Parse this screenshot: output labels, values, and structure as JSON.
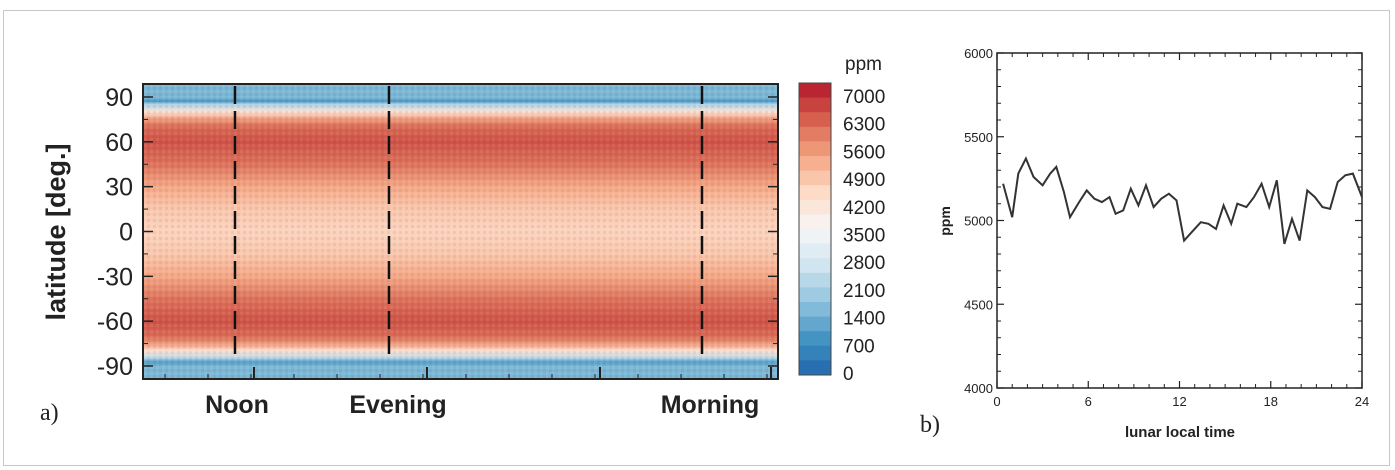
{
  "panel_a": {
    "label": "a)",
    "ylabel": "latitude [deg.]",
    "yticks": [
      "90",
      "60",
      "30",
      "0",
      "-30",
      "-60",
      "-90"
    ],
    "time_labels": [
      "Noon",
      "Evening",
      "Morning"
    ],
    "colorbar": {
      "unit": "ppm",
      "ticks": [
        "7000",
        "6300",
        "5600",
        "4900",
        "4200",
        "3500",
        "2800",
        "2100",
        "1400",
        "700",
        "0"
      ]
    }
  },
  "panel_b": {
    "label": "b)",
    "xlabel": "lunar local time",
    "ylabel": "ppm",
    "xticks": [
      "0",
      "6",
      "12",
      "18",
      "24"
    ],
    "yticks": [
      "6000",
      "5500",
      "5000",
      "4500",
      "4000"
    ]
  },
  "chart_data": [
    {
      "type": "heatmap",
      "panel": "a",
      "ylabel": "latitude [deg.]",
      "ylim": [
        -90,
        90
      ],
      "y_ticks": [
        90,
        60,
        30,
        0,
        -30,
        -60,
        -90
      ],
      "x_annotations": [
        "Noon",
        "Evening",
        "Morning"
      ],
      "colorbar_unit": "ppm",
      "colorbar_range": [
        0,
        7000
      ],
      "colorbar_ticks": [
        7000,
        6300,
        5600,
        4900,
        4200,
        3500,
        2800,
        2100,
        1400,
        700,
        0
      ],
      "colormap": [
        "#2166ac",
        "#4393c3",
        "#92c5de",
        "#d1e5f0",
        "#f7f7f7",
        "#fddbc7",
        "#f4a582",
        "#d6604d",
        "#b2182b"
      ],
      "latitude_profile": {
        "latitude": [
          90,
          87,
          85,
          80,
          75,
          70,
          60,
          45,
          30,
          15,
          0,
          -15,
          -30,
          -45,
          -60,
          -70,
          -75,
          -80,
          -85,
          -87,
          -90
        ],
        "ppm": [
          1500,
          1000,
          2200,
          4200,
          5400,
          6000,
          6300,
          5900,
          5200,
          4700,
          4500,
          4700,
          5200,
          5900,
          6300,
          6000,
          5400,
          4200,
          2200,
          1000,
          1500
        ]
      }
    },
    {
      "type": "line",
      "panel": "b",
      "xlabel": "lunar local time",
      "ylabel": "ppm",
      "xlim": [
        0,
        24
      ],
      "ylim": [
        4000,
        6000
      ],
      "xticks": [
        0,
        6,
        12,
        18,
        24
      ],
      "yticks": [
        4000,
        4500,
        5000,
        5500,
        6000
      ],
      "grid": false,
      "series": [
        {
          "x": [
            0.4,
            1.0,
            1.4,
            1.9,
            2.4,
            3.0,
            3.5,
            3.9,
            4.4,
            4.8,
            5.4,
            5.9,
            6.4,
            6.9,
            7.4,
            7.8,
            8.3,
            8.8,
            9.3,
            9.8,
            10.3,
            10.8,
            11.3,
            11.8,
            12.3,
            12.8,
            13.4,
            13.9,
            14.4,
            14.9,
            15.4,
            15.8,
            16.4,
            16.9,
            17.4,
            17.9,
            18.4,
            18.9,
            19.4,
            19.9,
            20.4,
            20.9,
            21.4,
            21.9,
            22.4,
            22.9,
            23.4,
            24.0
          ],
          "y": [
            5220,
            5020,
            5280,
            5370,
            5260,
            5210,
            5280,
            5320,
            5170,
            5020,
            5110,
            5180,
            5130,
            5110,
            5140,
            5040,
            5060,
            5190,
            5090,
            5210,
            5080,
            5130,
            5160,
            5120,
            4880,
            4930,
            4990,
            4980,
            4950,
            5090,
            4980,
            5100,
            5080,
            5140,
            5220,
            5080,
            5240,
            4860,
            5010,
            4880,
            5180,
            5140,
            5080,
            5070,
            5230,
            5270,
            5280,
            5140
          ]
        }
      ]
    }
  ]
}
